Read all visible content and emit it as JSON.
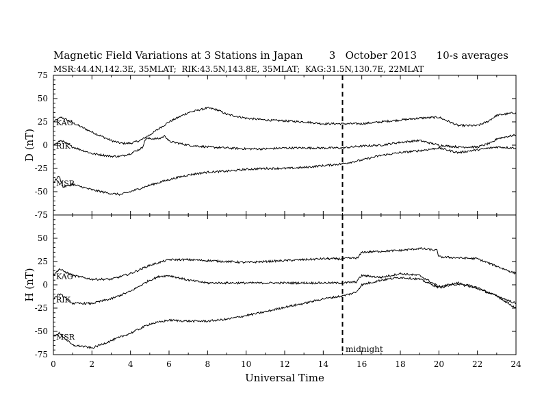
{
  "title": "Magnetic Field Variations at 3 Stations in Japan        3   October 2013      10-s averages",
  "subtitle": "MSR:44.4N,142.3E, 35MLAT;  RIK:43.5N,143.8E, 35MLAT;  KAG:31.5N,130.7E, 22MLAT",
  "chart_data": [
    {
      "type": "line",
      "ylabel": "D (nT)",
      "xlabel": "",
      "xlim": [
        0,
        24
      ],
      "ylim": [
        -75,
        75
      ],
      "yticks": [
        75,
        50,
        25,
        0,
        -25,
        -50,
        -75
      ],
      "series": [
        {
          "name": "KAG",
          "x": [
            0,
            0.4,
            1,
            2,
            3,
            3.5,
            4,
            4.5,
            5,
            5.5,
            6,
            7,
            8,
            8.5,
            9,
            10,
            11,
            12,
            13,
            14,
            15,
            16,
            17,
            18,
            19,
            20,
            21,
            22,
            22.5,
            23,
            24
          ],
          "values": [
            25,
            30,
            24,
            14,
            5,
            2,
            2,
            5,
            11,
            18,
            25,
            35,
            40,
            38,
            33,
            29,
            27,
            26,
            25,
            23,
            23,
            23,
            25,
            27,
            29,
            30,
            21,
            21,
            25,
            32,
            35
          ]
        },
        {
          "name": "RIK",
          "x": [
            0,
            0.4,
            1,
            2,
            3,
            3.5,
            4,
            4.6,
            4.8,
            5.5,
            5.8,
            6,
            7,
            8,
            9,
            10,
            11,
            12,
            13,
            14,
            15,
            16,
            17,
            18,
            19,
            20,
            21,
            22,
            22.8,
            23,
            24
          ],
          "values": [
            0,
            5,
            -2,
            -9,
            -12,
            -12,
            -9,
            -3,
            7,
            7,
            10,
            4,
            0,
            -2,
            -3,
            -4,
            -4,
            -3,
            -3,
            -3,
            -3,
            -1,
            0,
            3,
            5,
            0,
            -2,
            -2,
            3,
            7,
            11
          ]
        },
        {
          "name": "MSR",
          "x": [
            0,
            0.3,
            0.5,
            1,
            2,
            3,
            3.5,
            4,
            5,
            6,
            7,
            8,
            9,
            10,
            11,
            12,
            13,
            14,
            15,
            16,
            17,
            18,
            19,
            20,
            21,
            22,
            23,
            24
          ],
          "values": [
            -40,
            -33,
            -45,
            -42,
            -48,
            -52,
            -53,
            -50,
            -43,
            -37,
            -32,
            -29,
            -28,
            -26,
            -25,
            -25,
            -24,
            -22,
            -20,
            -16,
            -11,
            -8,
            -6,
            -3,
            -8,
            -5,
            -2,
            -3
          ]
        }
      ]
    },
    {
      "type": "line",
      "ylabel": "H (nT)",
      "xlabel": "Universal Time",
      "xlim": [
        0,
        24
      ],
      "ylim": [
        -75,
        75
      ],
      "yticks": [
        75,
        50,
        25,
        0,
        -25,
        -50,
        -75
      ],
      "xticks": [
        0,
        2,
        4,
        6,
        8,
        10,
        12,
        14,
        16,
        18,
        20,
        22,
        24
      ],
      "annotations": [
        {
          "text": "midnight",
          "x": 15
        }
      ],
      "series": [
        {
          "name": "KAG",
          "x": [
            0,
            0.3,
            0.5,
            1,
            2,
            3,
            4,
            5,
            6,
            7,
            8,
            9,
            10,
            11,
            12,
            13,
            14,
            15,
            15.8,
            16,
            17,
            18,
            19,
            19.9,
            20,
            21,
            22,
            23,
            24
          ],
          "values": [
            10,
            17,
            15,
            10,
            6,
            6,
            12,
            21,
            27,
            27,
            26,
            25,
            24,
            25,
            26,
            27,
            28,
            28,
            29,
            35,
            36,
            37,
            39,
            37,
            30,
            29,
            28,
            20,
            12
          ]
        },
        {
          "name": "RIK",
          "x": [
            0,
            0.3,
            0.5,
            1,
            2,
            3,
            4,
            5,
            5.5,
            6,
            7,
            8,
            9,
            10,
            11,
            12,
            13,
            14,
            15,
            15.7,
            16,
            17,
            18,
            19,
            20,
            21,
            22,
            23,
            24
          ],
          "values": [
            -15,
            -10,
            -12,
            -20,
            -20,
            -15,
            -7,
            5,
            9,
            10,
            5,
            2,
            2,
            2,
            2,
            2,
            2,
            2,
            2,
            3,
            10,
            8,
            12,
            10,
            -2,
            2,
            -3,
            -12,
            -20
          ]
        },
        {
          "name": "MSR",
          "x": [
            0,
            0.3,
            1,
            1.5,
            2,
            3,
            4,
            5,
            6,
            7,
            8,
            9,
            10,
            11,
            12,
            13,
            14,
            15,
            15.7,
            16,
            17,
            18,
            19,
            20,
            21,
            22,
            23,
            24
          ],
          "values": [
            -55,
            -52,
            -65,
            -66,
            -68,
            -60,
            -52,
            -42,
            -38,
            -39,
            -39,
            -37,
            -33,
            -29,
            -24,
            -20,
            -15,
            -12,
            -8,
            0,
            5,
            8,
            6,
            -3,
            1,
            -4,
            -12,
            -25
          ]
        }
      ]
    }
  ]
}
